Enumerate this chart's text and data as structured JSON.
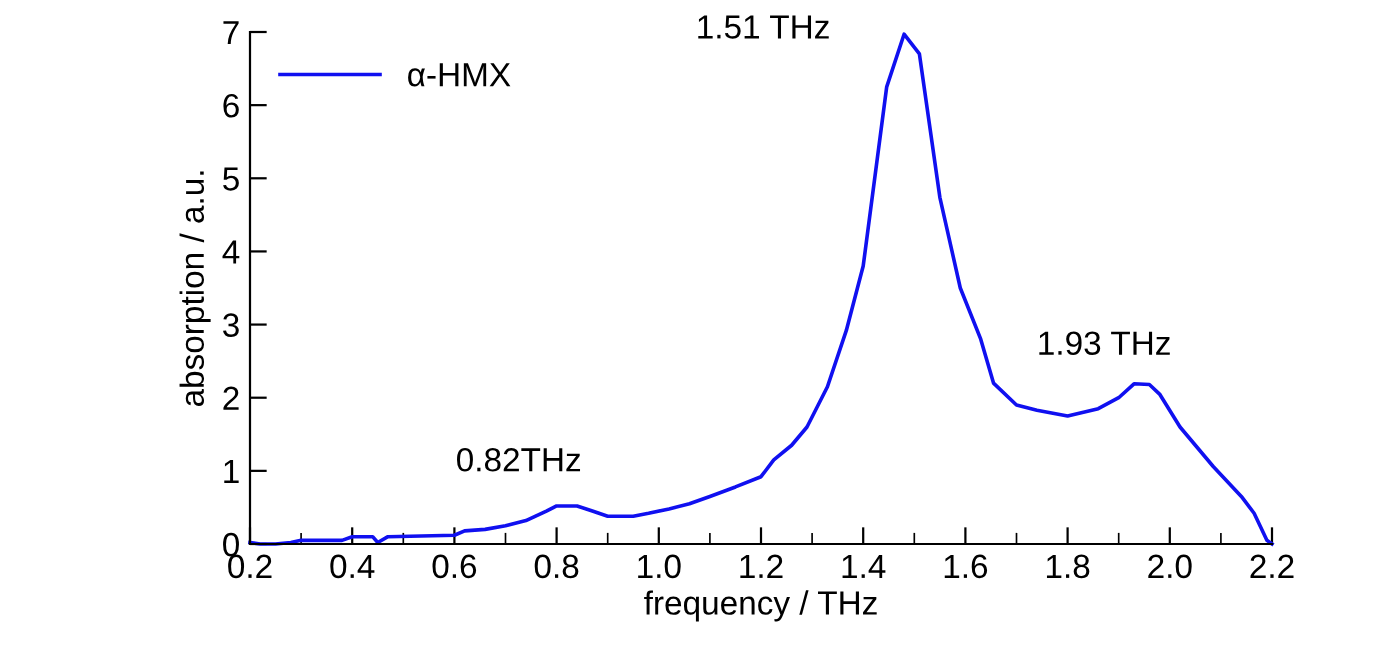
{
  "chart_data": {
    "type": "line",
    "xlabel": "frequency / THz",
    "ylabel": "absorption / a.u.",
    "xlim": [
      0.2,
      2.2
    ],
    "xticks": [
      {
        "value": 0.2,
        "label": "0.2"
      },
      {
        "value": 0.4,
        "label": "0.4"
      },
      {
        "value": 0.6,
        "label": "0.6"
      },
      {
        "value": 0.8,
        "label": "0.8"
      },
      {
        "value": 1.0,
        "label": "1.0"
      },
      {
        "value": 1.2,
        "label": "1.2"
      },
      {
        "value": 1.4,
        "label": "1.4"
      },
      {
        "value": 1.6,
        "label": "1.6"
      },
      {
        "value": 1.8,
        "label": "1.8"
      },
      {
        "value": 2.0,
        "label": "2.0"
      },
      {
        "value": 2.2,
        "label": "2.2"
      }
    ],
    "ylim": [
      0,
      7
    ],
    "yticks": [
      0,
      1,
      2,
      3,
      4,
      5,
      6,
      7
    ],
    "grid": false,
    "legend": "top left",
    "marker": "none",
    "line_style": "solid",
    "series": [
      {
        "name": "α-HMX",
        "color": "#1010f0",
        "x": [
          0.2,
          0.22,
          0.25,
          0.28,
          0.3,
          0.38,
          0.4,
          0.44,
          0.45,
          0.47,
          0.6,
          0.62,
          0.66,
          0.7,
          0.74,
          0.78,
          0.8,
          0.84,
          0.87,
          0.9,
          0.95,
          0.98,
          1.02,
          1.06,
          1.1,
          1.15,
          1.2,
          1.225,
          1.26,
          1.29,
          1.33,
          1.367,
          1.4,
          1.446,
          1.48,
          1.51,
          1.55,
          1.59,
          1.63,
          1.655,
          1.7,
          1.74,
          1.8,
          1.86,
          1.9,
          1.93,
          1.96,
          1.98,
          2.02,
          2.085,
          2.14,
          2.165,
          2.19,
          2.2
        ],
        "values": [
          0.02,
          0.0,
          0.0,
          0.02,
          0.05,
          0.05,
          0.1,
          0.1,
          0.02,
          0.1,
          0.12,
          0.18,
          0.2,
          0.25,
          0.32,
          0.45,
          0.52,
          0.52,
          0.45,
          0.38,
          0.38,
          0.42,
          0.48,
          0.55,
          0.65,
          0.78,
          0.92,
          1.15,
          1.35,
          1.6,
          2.15,
          2.92,
          3.8,
          6.25,
          6.97,
          6.7,
          4.74,
          3.5,
          2.8,
          2.2,
          1.9,
          1.83,
          1.75,
          1.85,
          2.0,
          2.19,
          2.18,
          2.05,
          1.6,
          1.06,
          0.65,
          0.42,
          0.05,
          0.0
        ]
      }
    ],
    "annotations": [
      {
        "text": "0.82THz",
        "x": 0.82,
        "y": 0.52
      },
      {
        "text": "1.51 THz",
        "x": 1.48,
        "y": 6.97
      },
      {
        "text": "1.93 THz",
        "x": 1.93,
        "y": 2.19
      }
    ]
  }
}
